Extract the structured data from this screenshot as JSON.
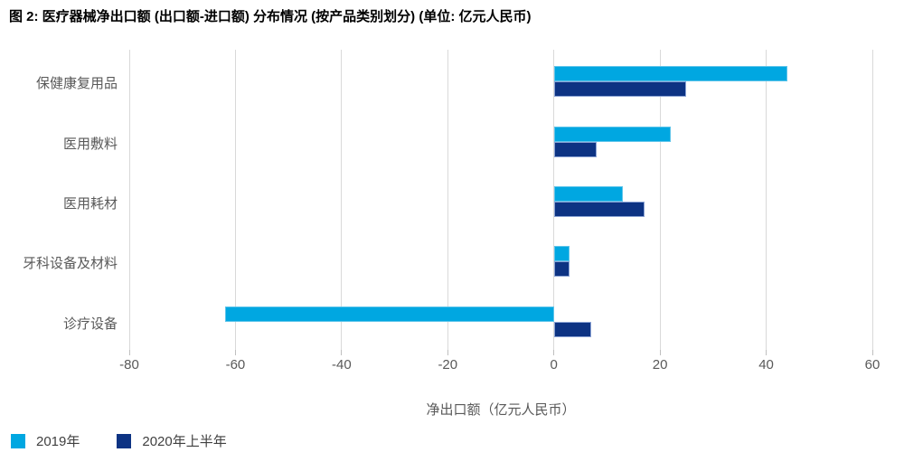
{
  "title": "图 2: 医疗器械净出口额 (出口额-进口额) 分布情况 (按产品类别划分) (单位: 亿元人民币)",
  "chart_data": {
    "type": "bar",
    "orientation": "horizontal",
    "title": "图 2: 医疗器械净出口额 (出口额-进口额) 分布情况 (按产品类别划分) (单位: 亿元人民币)",
    "categories": [
      "保健康复用品",
      "医用敷料",
      "医用耗材",
      "牙科设备及材料",
      "诊疗设备"
    ],
    "series": [
      {
        "name": "2019年",
        "color": "#00a7e1",
        "values": [
          44,
          22,
          13,
          3,
          -62
        ]
      },
      {
        "name": "2020年上半年",
        "color": "#0d3383",
        "values": [
          25,
          8,
          17,
          3,
          7
        ]
      }
    ],
    "xlabel": "净出口额（亿元人民币）",
    "ylabel": "",
    "xlim": [
      -80,
      60
    ],
    "xticks": [
      -80,
      -60,
      -40,
      -20,
      0,
      20,
      40,
      60
    ],
    "grid": true,
    "legend_position": "bottom-left"
  },
  "colors": {
    "grid": "#d9d9d9",
    "tick": "#bfbfbf",
    "axis_text": "#595959",
    "title_text": "#000000",
    "series_2019": "#00a7e1",
    "series_2020h1": "#0d3383"
  }
}
